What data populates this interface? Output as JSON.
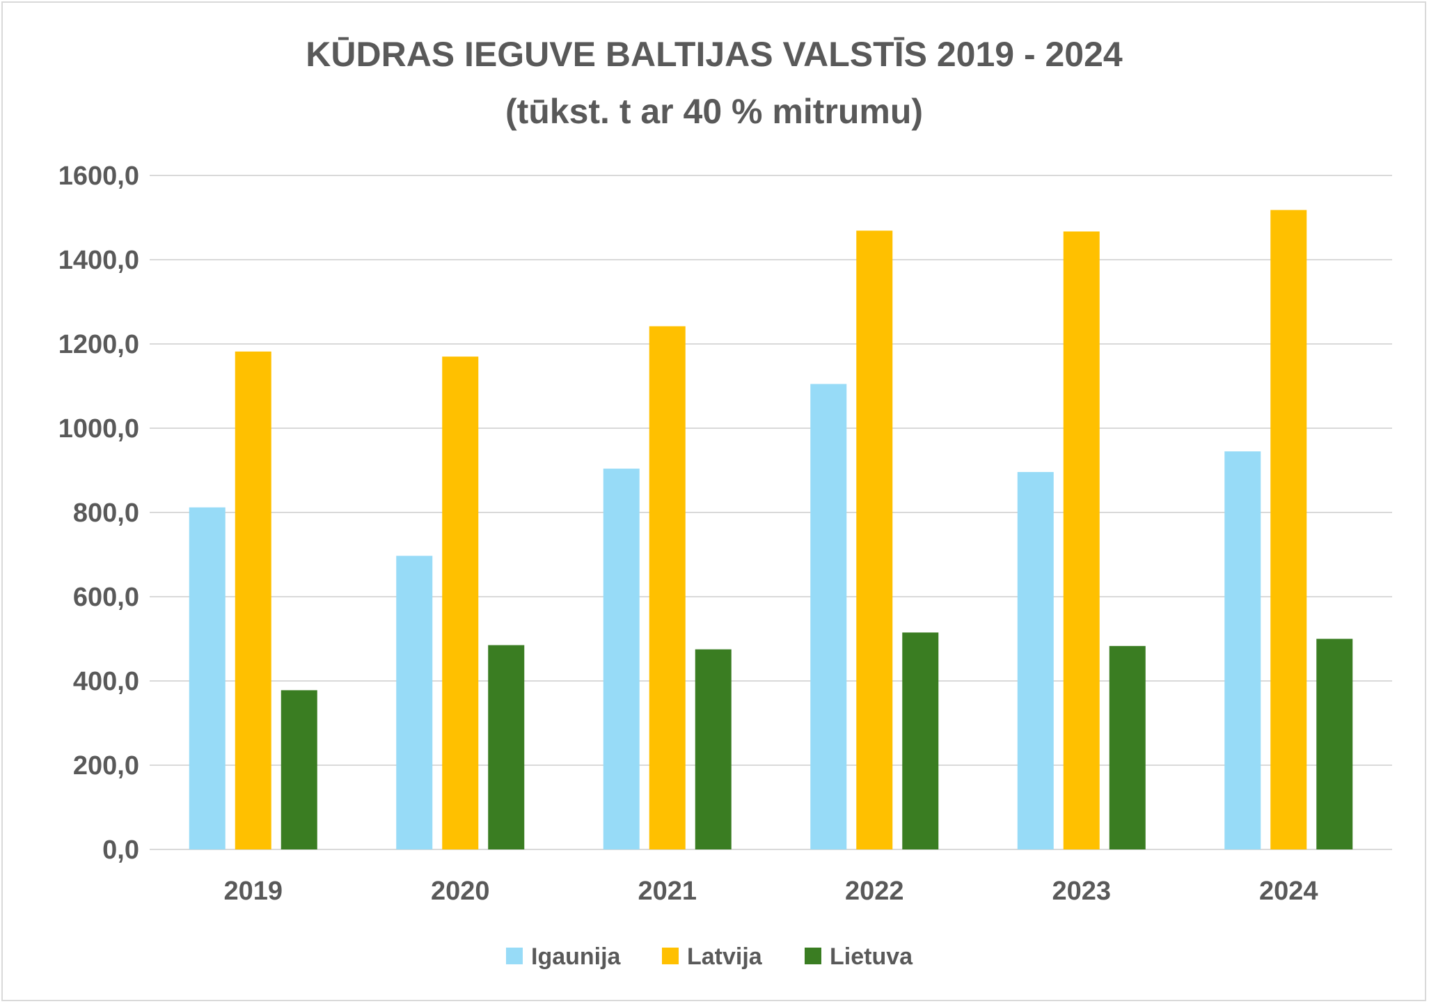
{
  "chart_data": {
    "type": "bar",
    "title": "KŪDRAS IEGUVE BALTIJAS VALSTĪS 2019 - 2024",
    "subtitle": "(tūkst. t ar 40 % mitrumu)",
    "xlabel": "",
    "ylabel": "",
    "categories": [
      "2019",
      "2020",
      "2021",
      "2022",
      "2023",
      "2024"
    ],
    "series": [
      {
        "name": "Igaunija",
        "color": "#97dbf7",
        "values": [
          812,
          697,
          904,
          1105,
          896,
          945
        ]
      },
      {
        "name": "Latvija",
        "color": "#ffc000",
        "values": [
          1182,
          1170,
          1242,
          1469,
          1467,
          1518
        ]
      },
      {
        "name": "Lietuva",
        "color": "#3a7d22",
        "values": [
          378,
          485,
          475,
          515,
          483,
          500
        ]
      }
    ],
    "ylim": [
      0,
      1600
    ],
    "yticks": [
      0,
      200,
      400,
      600,
      800,
      1000,
      1200,
      1400,
      1600
    ],
    "ytick_labels": [
      "0,0",
      "200,0",
      "400,0",
      "600,0",
      "800,0",
      "1000,0",
      "1200,0",
      "1400,0",
      "1600,0"
    ],
    "grid": true,
    "legend_position": "bottom"
  }
}
